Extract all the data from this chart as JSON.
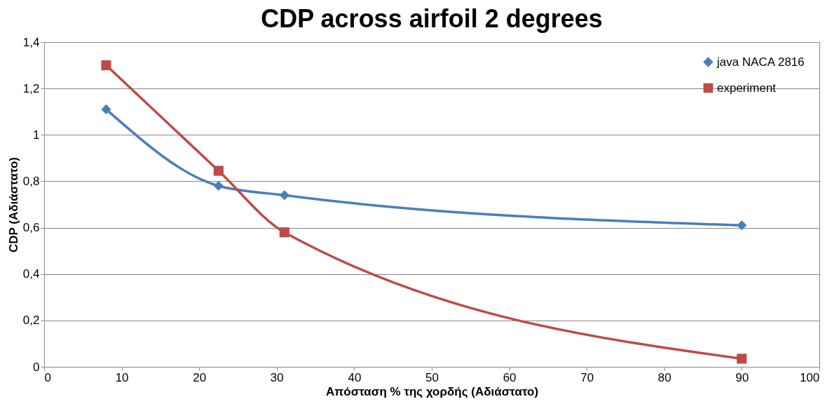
{
  "chart_data": {
    "type": "line",
    "title": "CDP across airfoil  2 degrees",
    "xlabel": "Απόσταση % της χορδής (Αδιάστατο)",
    "ylabel": "CDP (Αδιάστατο)",
    "series": [
      {
        "name": "java NACA 2816",
        "color": "#4a7ebb",
        "marker": "diamond",
        "x": [
          8,
          22.5,
          31,
          90
        ],
        "values": [
          1.11,
          0.78,
          0.74,
          0.61
        ]
      },
      {
        "name": "experiment",
        "color": "#be4b48",
        "marker": "square",
        "x": [
          8,
          22.5,
          31,
          90
        ],
        "values": [
          1.3,
          0.845,
          0.58,
          0.035
        ]
      }
    ],
    "xlim": [
      0,
      100
    ],
    "xticks": [
      0,
      10,
      20,
      30,
      40,
      50,
      60,
      70,
      80,
      90,
      100
    ],
    "ylim": [
      0,
      1.4
    ],
    "yticks": [
      {
        "value": 0,
        "label": "0"
      },
      {
        "value": 0.2,
        "label": "0,2"
      },
      {
        "value": 0.4,
        "label": "0,4"
      },
      {
        "value": 0.6,
        "label": "0,6"
      },
      {
        "value": 0.8,
        "label": "0,8"
      },
      {
        "value": 1,
        "label": "1"
      },
      {
        "value": 1.2,
        "label": "1,2"
      },
      {
        "value": 1.4,
        "label": "1,4"
      }
    ],
    "grid": "y",
    "legend": "top right",
    "line_style": "solid"
  }
}
